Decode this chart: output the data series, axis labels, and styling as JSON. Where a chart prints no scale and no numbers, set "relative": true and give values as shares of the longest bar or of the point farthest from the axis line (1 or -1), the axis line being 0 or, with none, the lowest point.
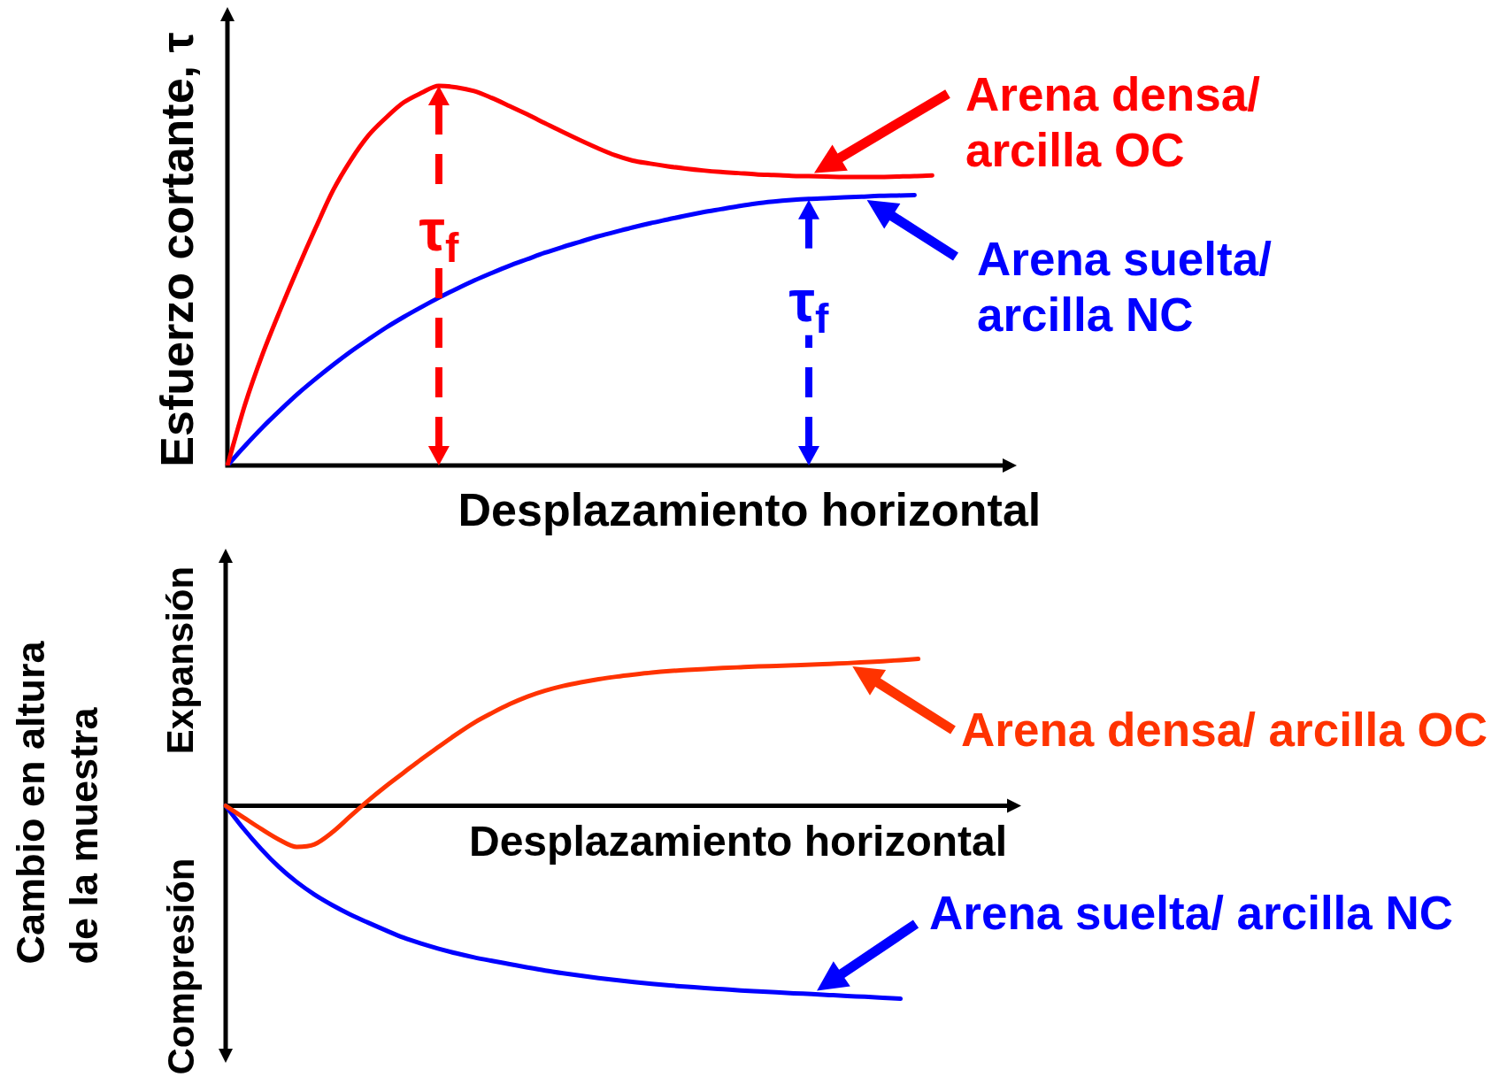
{
  "chart_data": [
    {
      "type": "line",
      "relative": true,
      "xlabel": "Desplazamiento horizontal",
      "ylabel": "Esfuerzo cortante, τ",
      "categories": [
        null,
        null,
        null,
        null,
        null,
        null,
        null,
        null,
        null,
        null,
        null,
        null,
        null,
        null,
        null,
        null,
        null,
        null,
        null,
        null,
        null,
        null,
        null,
        null,
        null,
        null,
        null,
        null,
        null,
        null,
        null,
        null,
        null,
        null,
        null,
        null,
        null,
        null,
        null,
        null,
        null,
        null,
        null,
        null,
        null
      ],
      "series": [
        {
          "name": "Arena densa/ arcilla OC",
          "color": "#ff0000",
          "values": [
            0,
            0.161,
            0.294,
            0.41,
            0.52,
            0.625,
            0.725,
            0.804,
            0.869,
            0.916,
            0.956,
            0.981,
            1.0,
            0.996,
            0.986,
            0.968,
            0.947,
            0.925,
            0.902,
            0.879,
            0.857,
            0.836,
            0.817,
            0.803,
            0.795,
            0.788,
            0.782,
            0.777,
            0.773,
            0.77,
            0.767,
            0.765,
            0.763,
            0.762,
            0.761,
            0.76,
            0.76,
            0.76,
            0.761,
            0.762,
            0.764,
            null,
            null,
            null,
            null
          ]
        },
        {
          "name": "Arena suelta/ arcilla NC",
          "color": "#0000ff",
          "values": [
            0,
            0.052,
            0.101,
            0.146,
            0.189,
            0.228,
            0.265,
            0.3,
            0.332,
            0.363,
            0.391,
            0.417,
            0.442,
            0.465,
            0.487,
            0.507,
            0.526,
            0.543,
            0.56,
            0.575,
            0.589,
            0.603,
            0.615,
            0.627,
            0.638,
            0.648,
            0.658,
            0.667,
            0.675,
            0.683,
            0.69,
            0.695,
            0.699,
            0.702,
            0.704,
            0.706,
            0.708,
            0.71,
            0.711,
            0.712,
            null,
            null,
            null,
            null,
            null
          ]
        }
      ],
      "annotations": [
        {
          "text": "τ$_{f}$",
          "y": 1.0
        },
        {
          "text": "τ$_{f}$",
          "y": 0.7
        }
      ]
    },
    {
      "type": "line",
      "relative": true,
      "xlabel": "Desplazamiento horizontal",
      "ylabel": "Cambio en altura de la muestra",
      "categories": [
        null,
        null,
        null,
        null,
        null,
        null,
        null,
        null,
        null,
        null,
        null,
        null,
        null,
        null,
        null,
        null,
        null,
        null,
        null,
        null,
        null,
        null,
        null,
        null,
        null,
        null,
        null,
        null,
        null,
        null,
        null,
        null,
        null,
        null,
        null,
        null,
        null,
        null,
        null,
        null,
        null,
        null,
        null,
        null,
        null
      ],
      "series": [
        {
          "name": "Arena densa/ arcilla OC",
          "color": "#ff3300",
          "values": [
            0,
            -0.06,
            -0.12,
            -0.175,
            -0.213,
            -0.2,
            -0.138,
            -0.056,
            0.025,
            0.1,
            0.17,
            0.24,
            0.306,
            0.371,
            0.431,
            0.481,
            0.527,
            0.566,
            0.597,
            0.621,
            0.64,
            0.656,
            0.669,
            0.68,
            0.69,
            0.698,
            0.704,
            0.709,
            0.714,
            0.718,
            0.722,
            0.725,
            0.728,
            0.731,
            0.735,
            0.739,
            0.744,
            0.749,
            0.755,
            0.761,
            null,
            null,
            null,
            null,
            null
          ]
        },
        {
          "name": "Arena suelta/ arcilla NC",
          "color": "#0000ff",
          "values": [
            0,
            -0.118,
            -0.224,
            -0.317,
            -0.395,
            -0.46,
            -0.515,
            -0.563,
            -0.605,
            -0.645,
            -0.683,
            -0.714,
            -0.741,
            -0.765,
            -0.786,
            -0.804,
            -0.821,
            -0.838,
            -0.854,
            -0.868,
            -0.881,
            -0.893,
            -0.904,
            -0.914,
            -0.923,
            -0.931,
            -0.938,
            -0.945,
            -0.951,
            -0.957,
            -0.962,
            -0.967,
            -0.972,
            -0.976,
            -0.981,
            -0.986,
            -0.99,
            -0.995,
            -1.0,
            null,
            null,
            null,
            null,
            null,
            null
          ]
        }
      ],
      "annotations": [
        "Expansión",
        "Compresión"
      ]
    }
  ]
}
